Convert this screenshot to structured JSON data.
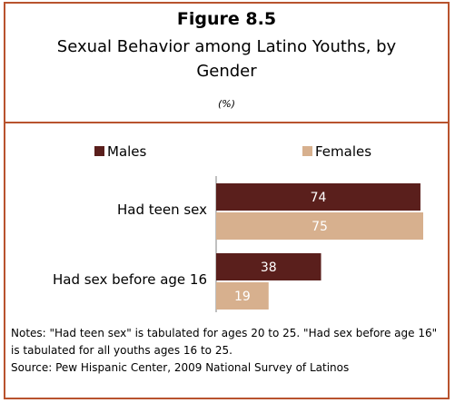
{
  "figure": {
    "number": "Figure 8.5",
    "title": "Sexual Behavior among Latino Youths, by Gender",
    "units": "(%)"
  },
  "chart_data": {
    "type": "bar",
    "orientation": "horizontal",
    "categories": [
      "Had teen sex",
      "Had sex before age 16"
    ],
    "series": [
      {
        "name": "Males",
        "values": [
          74,
          38
        ],
        "color": "#5a1f1c"
      },
      {
        "name": "Females",
        "values": [
          75,
          19
        ],
        "color": "#d7b08e"
      }
    ],
    "xlim": [
      0,
      75
    ],
    "legend": "top",
    "grid": false
  },
  "notes": [
    "Notes: \"Had teen sex\" is tabulated for ages 20 to 25. \"Had sex before age 16\" is tabulated for all youths ages 16 to 25.",
    "Source: Pew Hispanic Center, 2009 National Survey of Latinos"
  ]
}
